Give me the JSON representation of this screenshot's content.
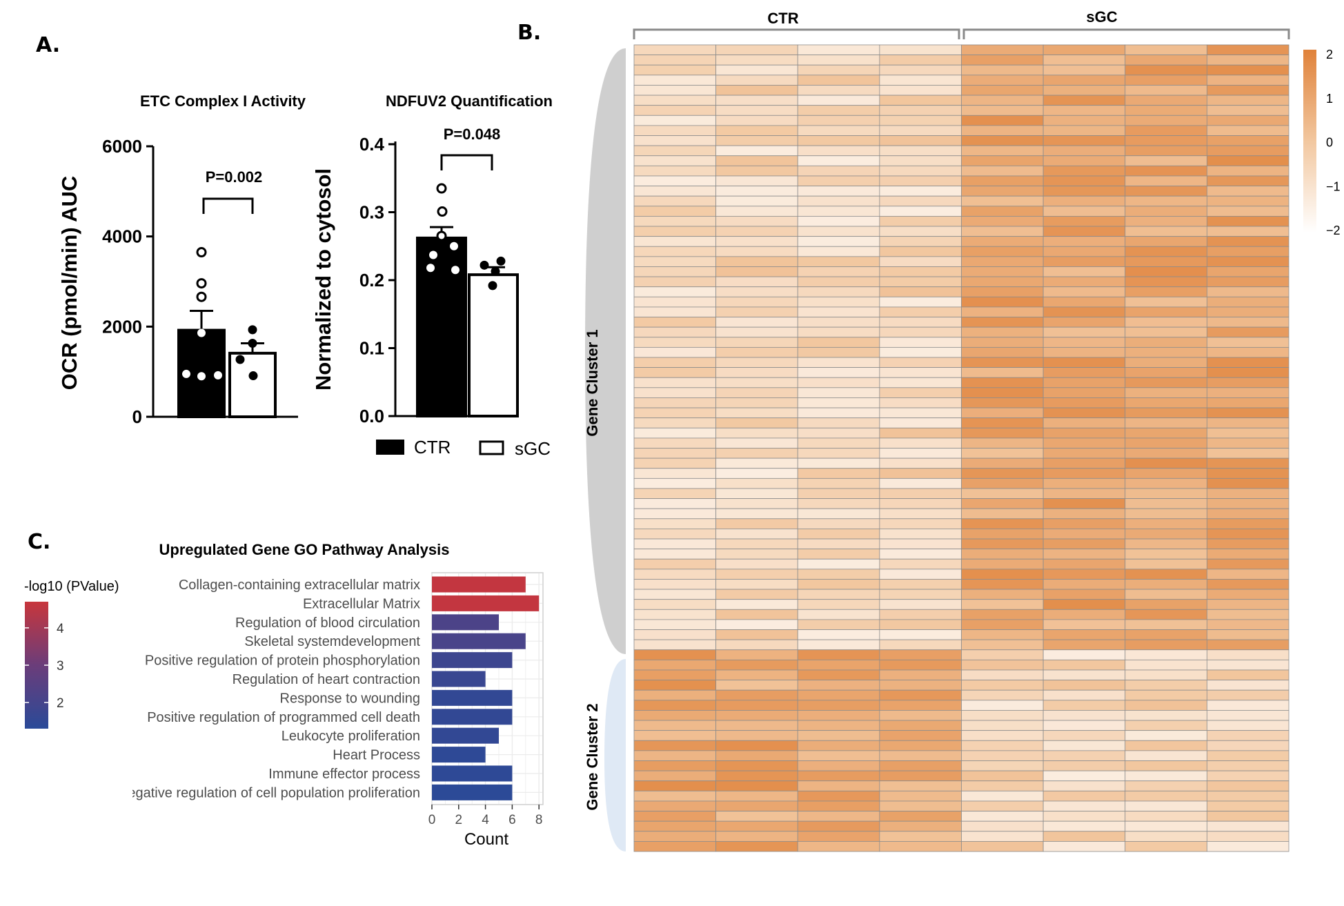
{
  "panels": {
    "a": "A.",
    "b": "B.",
    "c": "C."
  },
  "colors": {
    "ctr_fill": "#000000",
    "sgc_fill": "#ffffff",
    "heat_high": "#e0823a",
    "heat_low": "#ffffff",
    "go_high": "#c8363c",
    "go_low": "#2a4a98",
    "cluster1_band": "#cfcfcf",
    "cluster2_band": "#dfe9f5"
  },
  "chart_data": [
    {
      "id": "etc",
      "type": "bar",
      "title": "ETC Complex I Activity",
      "ylabel": "OCR (pmol/min) AUC",
      "ylim": [
        0,
        6000
      ],
      "yticks": [
        "0",
        "2000",
        "4000",
        "6000"
      ],
      "ytick_values": [
        0,
        2000,
        4000,
        6000
      ],
      "categories": [
        "CTR",
        "sGC"
      ],
      "values": [
        1920,
        1410
      ],
      "errors": [
        430,
        220
      ],
      "points": [
        [
          3650,
          2960,
          2660,
          1860,
          950,
          920,
          900
        ],
        [
          1930,
          1630,
          1270,
          910
        ]
      ],
      "p_value_label": "P=0.002"
    },
    {
      "id": "ndfuv2",
      "type": "bar",
      "title": "NDFUV2 Quantification",
      "ylabel": "Normalized to cytosol",
      "ylim": [
        0,
        0.4
      ],
      "yticks": [
        "0.0",
        "0.1",
        "0.2",
        "0.3",
        "0.4"
      ],
      "ytick_values": [
        0,
        0.1,
        0.2,
        0.3,
        0.4
      ],
      "categories": [
        "CTR",
        "sGC"
      ],
      "values": [
        0.262,
        0.208
      ],
      "errors": [
        0.016,
        0.011
      ],
      "points": [
        [
          0.335,
          0.301,
          0.265,
          0.25,
          0.237,
          0.218,
          0.215
        ],
        [
          0.228,
          0.222,
          0.213,
          0.192
        ]
      ],
      "p_value_label": "P=0.048",
      "legend": [
        "CTR",
        "sGC"
      ]
    },
    {
      "id": "heatmap",
      "type": "heatmap",
      "groups": [
        {
          "name": "CTR",
          "columns": 4
        },
        {
          "name": "sGC",
          "columns": 4
        }
      ],
      "n_columns": 8,
      "clusters": [
        {
          "name": "Gene Cluster 1",
          "rows": 60
        },
        {
          "name": "Gene Cluster 2",
          "rows": 20
        }
      ],
      "scale_range": [
        -2,
        2
      ],
      "scale_ticks": [
        "2",
        "1",
        "0",
        "−1",
        "−2"
      ],
      "scale_tick_values": [
        2,
        1,
        0,
        -1,
        -2
      ],
      "row_means": [
        [
          -0.6,
          -0.6,
          -0.6,
          -0.6,
          0.9,
          0.9,
          0.9,
          0.9
        ],
        [
          0.9,
          0.9,
          0.9,
          0.9,
          -0.6,
          -0.6,
          -0.6,
          -0.6
        ]
      ],
      "note": "individual cell values are approximate (seeded noise around row means)"
    },
    {
      "id": "go",
      "type": "bar",
      "orientation": "horizontal",
      "title": "Upregulated Gene GO Pathway Analysis",
      "xlabel": "Count",
      "xlim": [
        0,
        8
      ],
      "xticks": [
        "0",
        "2",
        "4",
        "6",
        "8"
      ],
      "xtick_values": [
        0,
        2,
        4,
        6,
        8
      ],
      "categories": [
        "Collagen-containing extracellular matrix",
        "Extracellular Matrix",
        "Regulation of blood circulation",
        "Skeletal systemdevelopment",
        "Positive regulation of protein phosphorylation",
        "Regulation of heart contraction",
        "Response to wounding",
        "Positive regulation of programmed cell death",
        "Leukocyte proliferation",
        "Heart Process",
        "Immune effector process",
        "Negative regulation of cell population proliferation"
      ],
      "values": [
        7,
        8,
        5,
        7,
        6,
        4,
        6,
        6,
        5,
        4,
        6,
        6
      ],
      "color_values": [
        4.6,
        4.6,
        2.2,
        2.1,
        1.8,
        1.7,
        1.5,
        1.5,
        1.5,
        1.4,
        1.4,
        1.35
      ],
      "colorbar_title": "-log10 (PValue)",
      "colorbar_range": [
        1.3,
        4.7
      ],
      "colorbar_ticks": [
        "2",
        "3",
        "4"
      ],
      "colorbar_tick_values": [
        2,
        3,
        4
      ]
    }
  ]
}
